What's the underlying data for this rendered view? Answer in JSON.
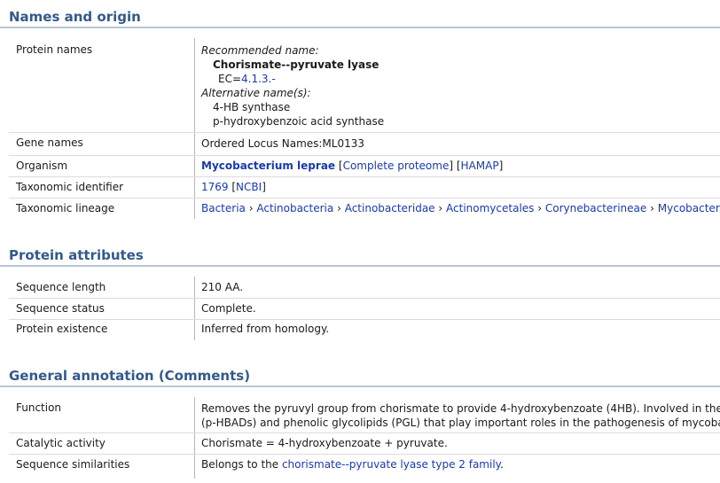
{
  "sections": {
    "names": {
      "title": "Names and origin",
      "protein_names_label": "Protein names",
      "recommended_label": "Recommended name:",
      "recommended_name": "Chorismate--pyruvate lyase",
      "ec_prefix": "EC=",
      "ec_value": "4.1.3.-",
      "alternative_label": "Alternative name(s):",
      "alt_name_1": "4-HB synthase",
      "alt_name_2": "p-hydroxybenzoic acid synthase",
      "gene_names_label": "Gene names",
      "gene_names_value": "Ordered Locus Names:ML0133",
      "organism_label": "Organism",
      "organism_name": "Mycobacterium leprae",
      "organism_complete_proteome": "Complete proteome",
      "organism_hamap": "HAMAP",
      "taxid_label": "Taxonomic identifier",
      "taxid_value": "1769",
      "taxid_ncbi": "NCBI",
      "lineage_label": "Taxonomic lineage",
      "lineage": [
        "Bacteria",
        "Actinobacteria",
        "Actinobacteridae",
        "Actinomycetales",
        "Corynebacterineae",
        "Mycobacteriace"
      ],
      "lineage_sep": "›"
    },
    "attributes": {
      "title": "Protein attributes",
      "seq_length_label": "Sequence length",
      "seq_length_value": "210 AA.",
      "seq_status_label": "Sequence status",
      "seq_status_value": "Complete.",
      "existence_label": "Protein existence",
      "existence_value": "Inferred from homology."
    },
    "annotation": {
      "title": "General annotation (Comments)",
      "function_label": "Function",
      "function_line1": "Removes the pyruvyl group from chorismate to provide 4-hydroxybenzoate (4HB). Involved in the synth",
      "function_line2": "(p-HBADs) and phenolic glycolipids (PGL) that play important roles in the pathogenesis of mycobacte",
      "catalytic_label": "Catalytic activity",
      "catalytic_value": "Chorismate = 4-hydroxybenzoate + pyruvate.",
      "similarity_label": "Sequence similarities",
      "similarity_prefix": "Belongs to the ",
      "similarity_link": "chorismate--pyruvate lyase type 2 family",
      "similarity_suffix": "."
    }
  }
}
